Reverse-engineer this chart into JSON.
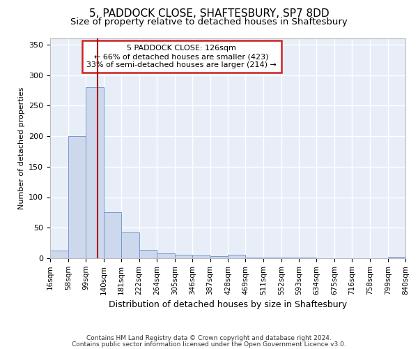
{
  "title1": "5, PADDOCK CLOSE, SHAFTESBURY, SP7 8DD",
  "title2": "Size of property relative to detached houses in Shaftesbury",
  "xlabel": "Distribution of detached houses by size in Shaftesbury",
  "ylabel": "Number of detached properties",
  "footer1": "Contains HM Land Registry data © Crown copyright and database right 2024.",
  "footer2": "Contains public sector information licensed under the Open Government Licence v3.0.",
  "annotation_line1": "5 PADDOCK CLOSE: 126sqm",
  "annotation_line2": "← 66% of detached houses are smaller (423)",
  "annotation_line3": "33% of semi-detached houses are larger (214) →",
  "bar_color": "#cdd8ed",
  "bar_edge_color": "#7799cc",
  "vline_color": "#aa0000",
  "vline_x": 126,
  "background_color": "#e8eef8",
  "bins": [
    16,
    58,
    99,
    140,
    181,
    222,
    264,
    305,
    346,
    387,
    428,
    469,
    511,
    552,
    593,
    634,
    675,
    716,
    758,
    799,
    840
  ],
  "counts": [
    13,
    200,
    280,
    75,
    42,
    14,
    8,
    6,
    5,
    4,
    6,
    1,
    1,
    1,
    1,
    0,
    0,
    0,
    0,
    2
  ],
  "ylim": [
    0,
    360
  ],
  "yticks": [
    0,
    50,
    100,
    150,
    200,
    250,
    300,
    350
  ],
  "grid_color": "#ffffff",
  "title1_fontsize": 11,
  "title2_fontsize": 9.5,
  "ylabel_fontsize": 8,
  "xlabel_fontsize": 9,
  "tick_fontsize": 7.5,
  "annotation_fontsize": 8,
  "footer_fontsize": 6.5
}
